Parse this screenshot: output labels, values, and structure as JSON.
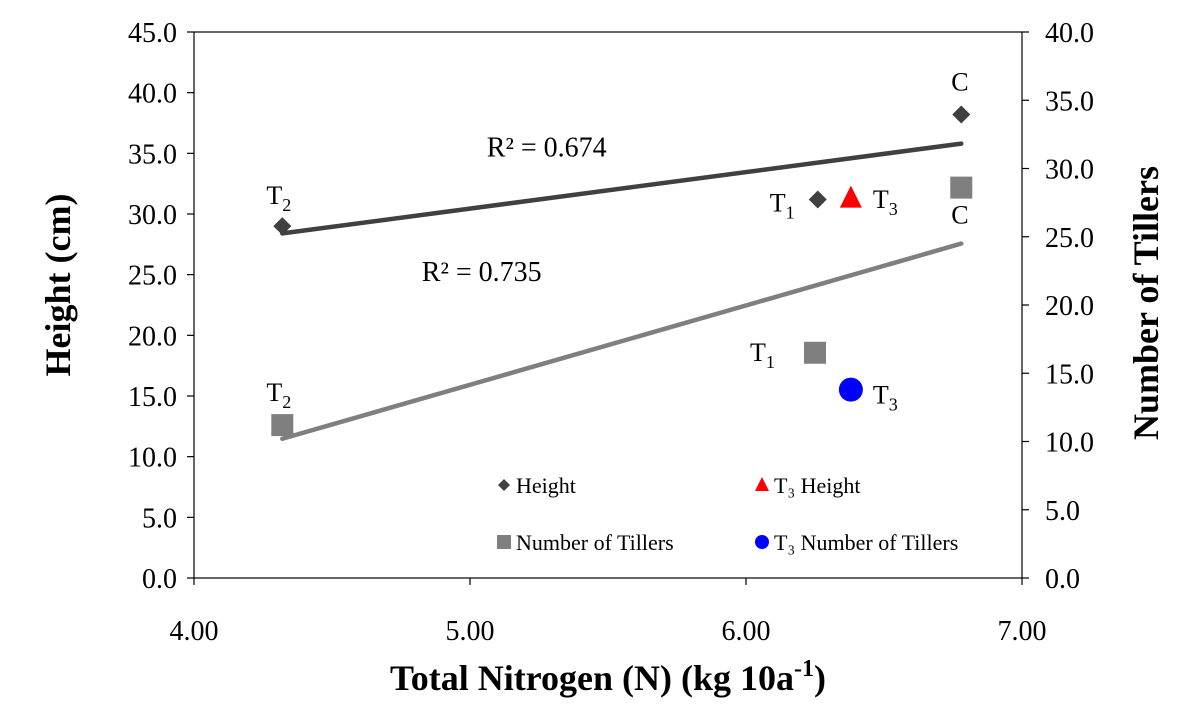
{
  "chart_data": {
    "type": "scatter",
    "title": "",
    "xlabel": "Total Nitrogen (N) (kg 10a",
    "xlabel_sup": "-1",
    "xlabel_end": ")",
    "ylabel_left": "Height (cm)",
    "ylabel_right": "Number of Tillers",
    "xlim": [
      4.0,
      7.0
    ],
    "ylim_left": [
      0,
      45
    ],
    "ylim_right": [
      0,
      40
    ],
    "x_ticks": [
      "4.00",
      "5.00",
      "6.00",
      "7.00"
    ],
    "y_left_ticks": [
      "0.0",
      "5.0",
      "10.0",
      "15.0",
      "20.0",
      "25.0",
      "30.0",
      "35.0",
      "40.0",
      "45.0"
    ],
    "y_right_ticks": [
      "0.0",
      "5.0",
      "10.0",
      "15.0",
      "20.0",
      "25.0",
      "30.0",
      "35.0",
      "40.0"
    ],
    "grid": false,
    "legend_position": "inside-bottom",
    "series": [
      {
        "name": "Height",
        "axis": "left",
        "marker": "diamond",
        "color": "#404040",
        "points": [
          {
            "x": 4.32,
            "y": 29.0,
            "label": "T",
            "label_sub": "2"
          },
          {
            "x": 6.26,
            "y": 31.2,
            "label": "T",
            "label_sub": "1"
          },
          {
            "x": 6.78,
            "y": 38.2,
            "label": "C",
            "label_sub": ""
          }
        ]
      },
      {
        "name": "T₃ Height",
        "axis": "left",
        "marker": "triangle",
        "color": "#ff0000",
        "points": [
          {
            "x": 6.38,
            "y": 31.3,
            "label": "T",
            "label_sub": "3"
          }
        ]
      },
      {
        "name": "Number of Tillers",
        "axis": "right",
        "marker": "square",
        "color": "#7f7f7f",
        "points": [
          {
            "x": 4.32,
            "y": 11.2,
            "label": "T",
            "label_sub": "2"
          },
          {
            "x": 6.25,
            "y": 16.5,
            "label": "T",
            "label_sub": "1"
          },
          {
            "x": 6.78,
            "y": 28.6,
            "label": "C",
            "label_sub": ""
          }
        ]
      },
      {
        "name": "T₃ Number of Tillers",
        "axis": "right",
        "marker": "circle",
        "color": "#0000ff",
        "points": [
          {
            "x": 6.38,
            "y": 13.8,
            "label": "T",
            "label_sub": "3"
          }
        ]
      }
    ],
    "trendlines": [
      {
        "series": "Height",
        "axis": "left",
        "x": [
          4.32,
          6.78
        ],
        "y": [
          28.4,
          35.8
        ],
        "r2_label": "R² = 0.674",
        "color": "#404040"
      },
      {
        "series": "Number of Tillers",
        "axis": "right",
        "x": [
          4.32,
          6.78
        ],
        "y": [
          10.2,
          24.5
        ],
        "r2_label": "R² = 0.735",
        "color": "#7f7f7f"
      }
    ],
    "legend": [
      {
        "label": "Height",
        "marker": "diamond",
        "color": "#404040"
      },
      {
        "label": "T₃ Height",
        "marker": "triangle",
        "color": "#ff0000"
      },
      {
        "label": "Number of Tillers",
        "marker": "square",
        "color": "#7f7f7f"
      },
      {
        "label": "T₃ Number of Tillers",
        "marker": "circle",
        "color": "#0000ff"
      }
    ]
  }
}
